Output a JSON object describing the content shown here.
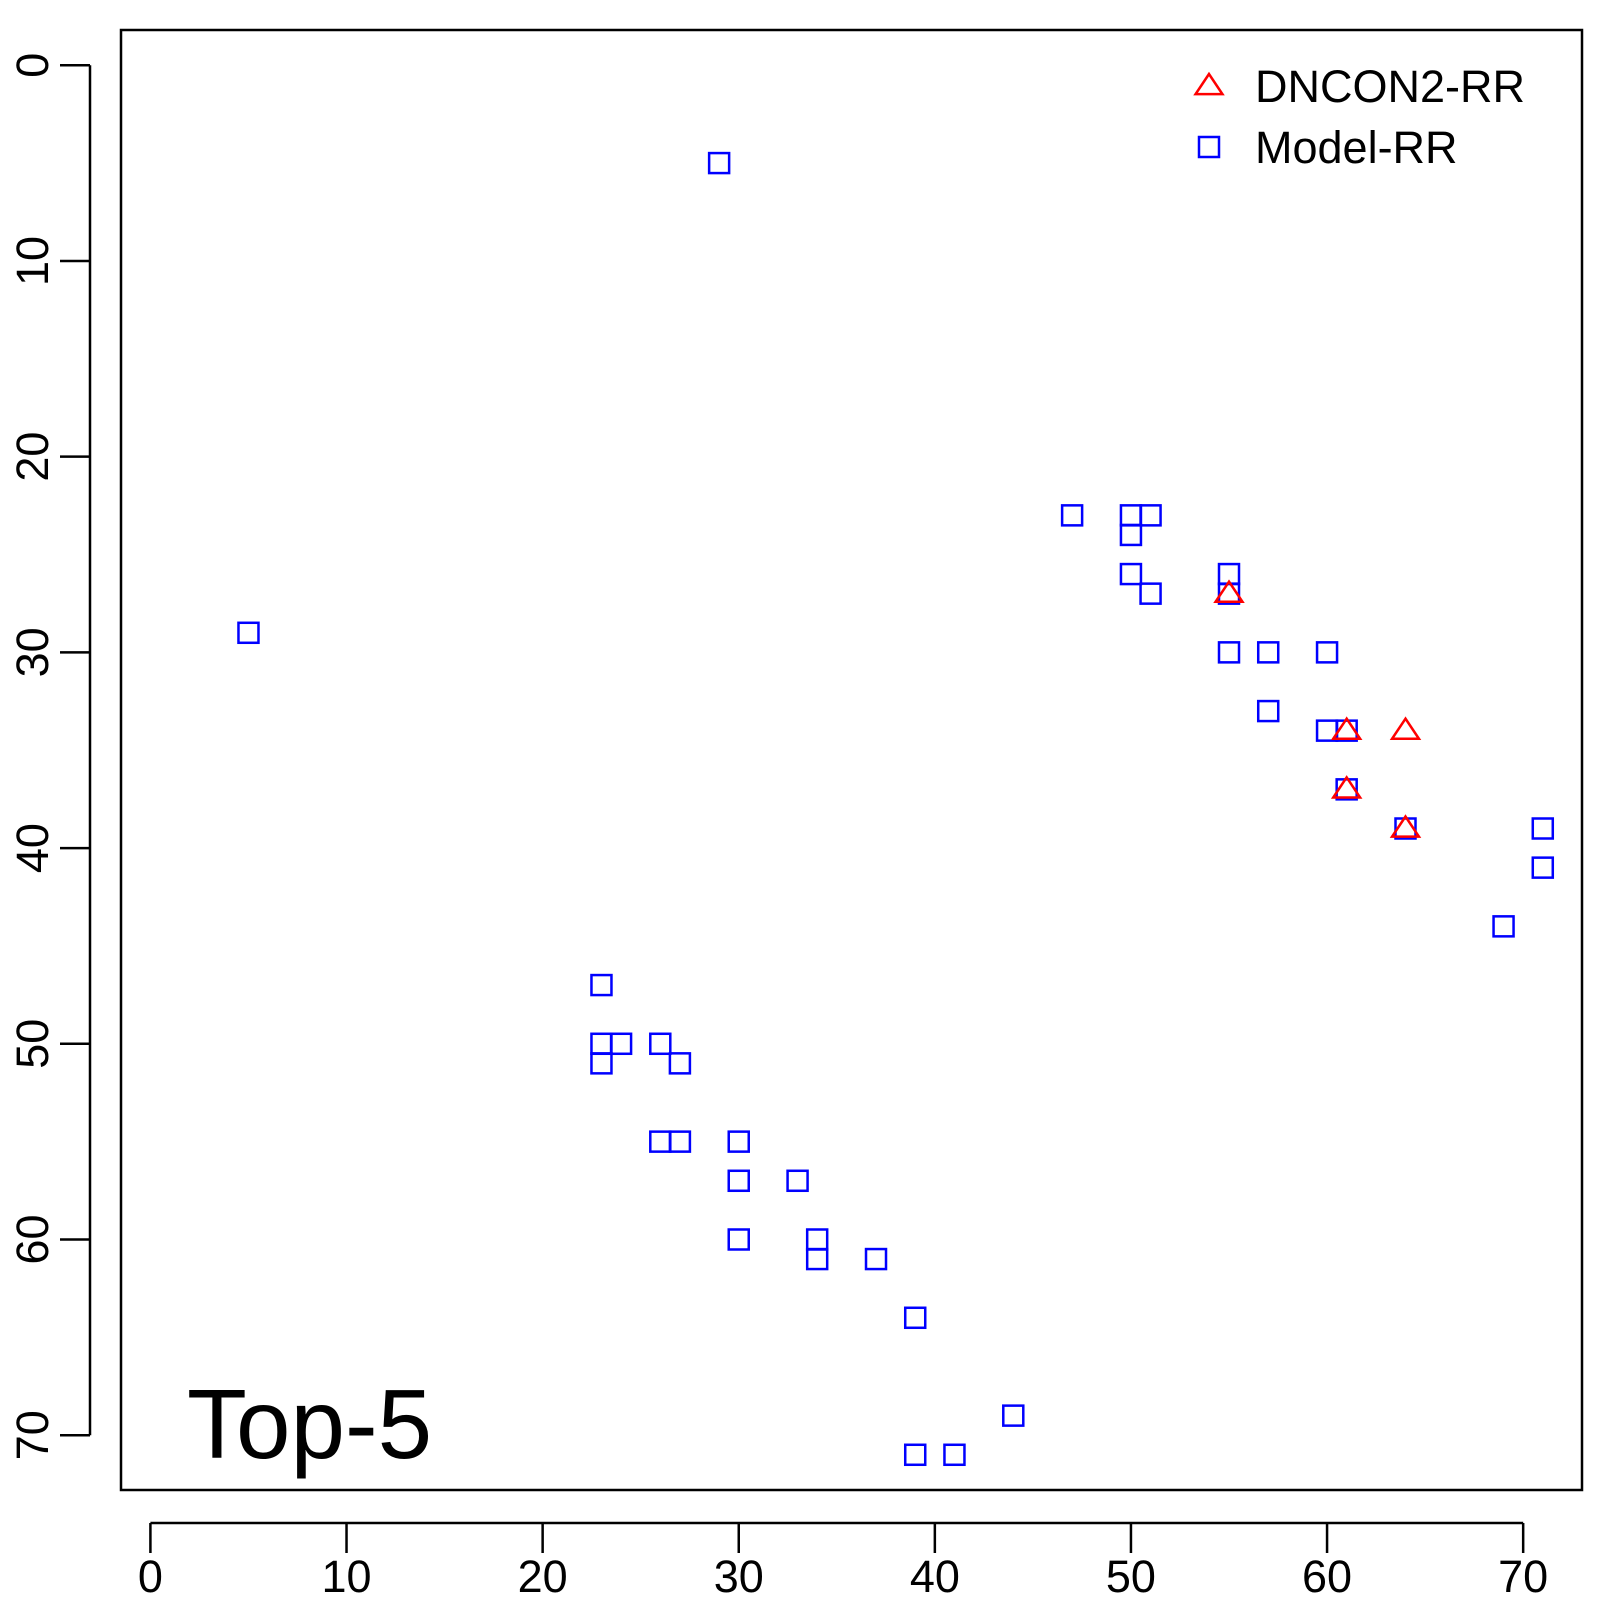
{
  "chart_data": {
    "type": "scatter",
    "title": "",
    "xlabel": "",
    "ylabel": "",
    "xlim": [
      -1.5,
      73
    ],
    "ylim": [
      72.8,
      -1.8
    ],
    "y_axis_reversed": true,
    "grid": false,
    "legend_position": "top-right",
    "x_ticks": [
      0,
      10,
      20,
      30,
      40,
      50,
      60,
      70
    ],
    "y_ticks": [
      0,
      10,
      20,
      30,
      40,
      50,
      60,
      70
    ],
    "annotation": "Top-5",
    "series": [
      {
        "name": "DNCON2-RR",
        "marker": "triangle-open",
        "color": "#ff0000",
        "points": [
          [
            55,
            27
          ],
          [
            61,
            34
          ],
          [
            64,
            34
          ],
          [
            61,
            37
          ],
          [
            64,
            39
          ]
        ]
      },
      {
        "name": "Model-RR",
        "marker": "square-open",
        "color": "#0000ff",
        "points": [
          [
            29,
            5
          ],
          [
            5,
            29
          ],
          [
            47,
            23
          ],
          [
            50,
            23
          ],
          [
            51,
            23
          ],
          [
            50,
            24
          ],
          [
            50,
            26
          ],
          [
            51,
            27
          ],
          [
            55,
            26
          ],
          [
            55,
            27
          ],
          [
            55,
            30
          ],
          [
            57,
            30
          ],
          [
            60,
            30
          ],
          [
            57,
            33
          ],
          [
            60,
            34
          ],
          [
            61,
            34
          ],
          [
            61,
            37
          ],
          [
            64,
            39
          ],
          [
            71,
            39
          ],
          [
            71,
            41
          ],
          [
            69,
            44
          ],
          [
            23,
            47
          ],
          [
            23,
            50
          ],
          [
            24,
            50
          ],
          [
            26,
            50
          ],
          [
            23,
            51
          ],
          [
            27,
            51
          ],
          [
            26,
            55
          ],
          [
            27,
            55
          ],
          [
            30,
            55
          ],
          [
            30,
            57
          ],
          [
            33,
            57
          ],
          [
            30,
            60
          ],
          [
            34,
            60
          ],
          [
            34,
            61
          ],
          [
            37,
            61
          ],
          [
            39,
            64
          ],
          [
            44,
            69
          ],
          [
            39,
            71
          ],
          [
            41,
            71
          ]
        ]
      }
    ]
  }
}
